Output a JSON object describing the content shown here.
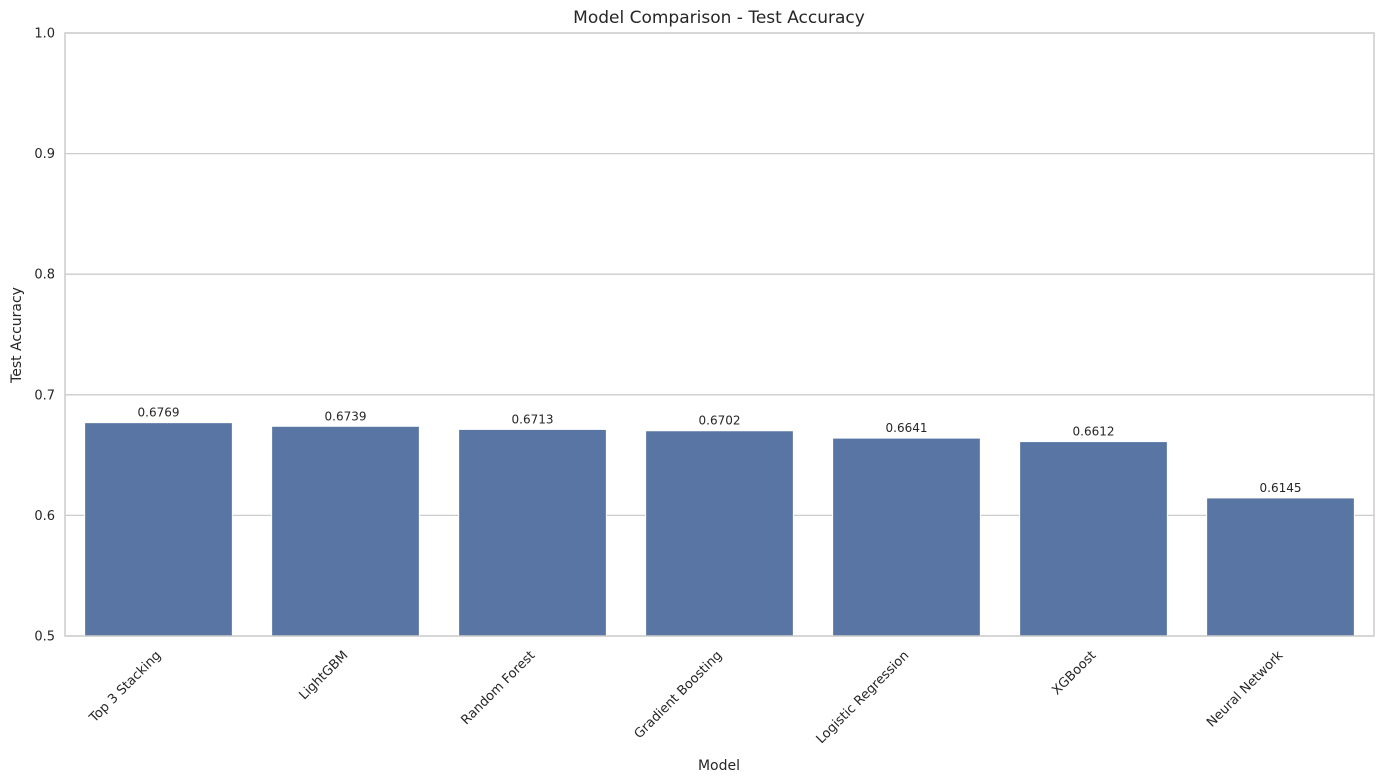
{
  "chart_data": {
    "type": "bar",
    "title": "Model Comparison - Test Accuracy",
    "xlabel": "Model",
    "ylabel": "Test Accuracy",
    "categories": [
      "Top 3 Stacking",
      "LightGBM",
      "Random Forest",
      "Gradient Boosting",
      "Logistic Regression",
      "XGBoost",
      "Neural Network"
    ],
    "values": [
      0.6769,
      0.6739,
      0.6713,
      0.6702,
      0.6641,
      0.6612,
      0.6145
    ],
    "data_labels": [
      "0.6769",
      "0.6739",
      "0.6713",
      "0.6702",
      "0.6641",
      "0.6612",
      "0.6145"
    ],
    "ylim": [
      0.5,
      1.0
    ],
    "yticks": [
      0.5,
      0.6,
      0.7,
      0.8,
      0.9,
      1.0
    ],
    "ytick_labels": [
      "0.5",
      "0.6",
      "0.7",
      "0.8",
      "0.9",
      "1.0"
    ],
    "grid": "horizontal",
    "bar_color": "#5875a4",
    "grid_color": "#cccccc",
    "spine_color": "#cccccc"
  }
}
